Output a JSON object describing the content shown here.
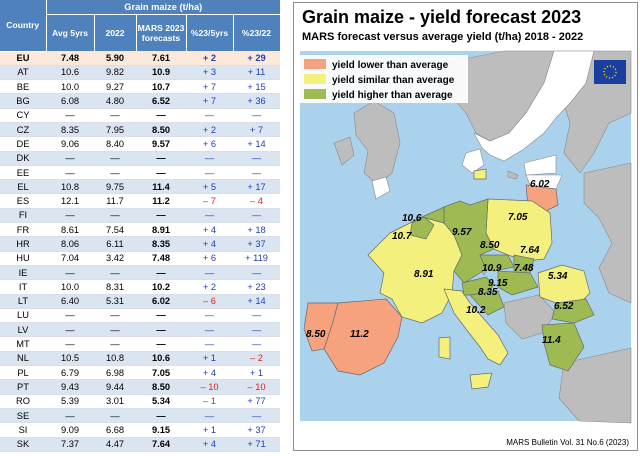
{
  "table": {
    "header_group": "Grain maize (t/ha)",
    "col_country": "Country",
    "columns": [
      "Avg 5yrs",
      "2022",
      "MARS 2023 forecasts",
      "%23/5yrs",
      "%23/22"
    ],
    "rows": [
      {
        "country": "EU",
        "avg": "7.48",
        "y2022": "5.90",
        "mars": "7.61",
        "p5": "+ 2",
        "p22": "+ 29"
      },
      {
        "country": "AT",
        "avg": "10.6",
        "y2022": "9.82",
        "mars": "10.9",
        "p5": "+ 3",
        "p22": "+ 11"
      },
      {
        "country": "BE",
        "avg": "10.0",
        "y2022": "9.27",
        "mars": "10.7",
        "p5": "+ 7",
        "p22": "+ 15"
      },
      {
        "country": "BG",
        "avg": "6.08",
        "y2022": "4.80",
        "mars": "6.52",
        "p5": "+ 7",
        "p22": "+ 36"
      },
      {
        "country": "CY",
        "avg": "—",
        "y2022": "—",
        "mars": "—",
        "p5": "—",
        "p22": "—"
      },
      {
        "country": "CZ",
        "avg": "8.35",
        "y2022": "7.95",
        "mars": "8.50",
        "p5": "+ 2",
        "p22": "+ 7"
      },
      {
        "country": "DE",
        "avg": "9.06",
        "y2022": "8.40",
        "mars": "9.57",
        "p5": "+ 6",
        "p22": "+ 14"
      },
      {
        "country": "DK",
        "avg": "—",
        "y2022": "—",
        "mars": "—",
        "p5": "—",
        "p22": "—"
      },
      {
        "country": "EE",
        "avg": "—",
        "y2022": "—",
        "mars": "—",
        "p5": "—",
        "p22": "—"
      },
      {
        "country": "EL",
        "avg": "10.8",
        "y2022": "9.75",
        "mars": "11.4",
        "p5": "+ 5",
        "p22": "+ 17"
      },
      {
        "country": "ES",
        "avg": "12.1",
        "y2022": "11.7",
        "mars": "11.2",
        "p5": "– 7",
        "p22": "– 4"
      },
      {
        "country": "FI",
        "avg": "—",
        "y2022": "—",
        "mars": "—",
        "p5": "—",
        "p22": "—"
      },
      {
        "country": "FR",
        "avg": "8.61",
        "y2022": "7.54",
        "mars": "8.91",
        "p5": "+ 4",
        "p22": "+ 18"
      },
      {
        "country": "HR",
        "avg": "8.06",
        "y2022": "6.11",
        "mars": "8.35",
        "p5": "+ 4",
        "p22": "+ 37"
      },
      {
        "country": "HU",
        "avg": "7.04",
        "y2022": "3.42",
        "mars": "7.48",
        "p5": "+ 6",
        "p22": "+ 119"
      },
      {
        "country": "IE",
        "avg": "—",
        "y2022": "—",
        "mars": "—",
        "p5": "—",
        "p22": "—"
      },
      {
        "country": "IT",
        "avg": "10.0",
        "y2022": "8.31",
        "mars": "10.2",
        "p5": "+ 2",
        "p22": "+ 23"
      },
      {
        "country": "LT",
        "avg": "6.40",
        "y2022": "5.31",
        "mars": "6.02",
        "p5": "– 6",
        "p22": "+ 14"
      },
      {
        "country": "LU",
        "avg": "—",
        "y2022": "—",
        "mars": "—",
        "p5": "—",
        "p22": "—"
      },
      {
        "country": "LV",
        "avg": "—",
        "y2022": "—",
        "mars": "—",
        "p5": "—",
        "p22": "—"
      },
      {
        "country": "MT",
        "avg": "—",
        "y2022": "—",
        "mars": "—",
        "p5": "—",
        "p22": "—"
      },
      {
        "country": "NL",
        "avg": "10.5",
        "y2022": "10.8",
        "mars": "10.6",
        "p5": "+ 1",
        "p22": "– 2"
      },
      {
        "country": "PL",
        "avg": "6.79",
        "y2022": "6.98",
        "mars": "7.05",
        "p5": "+ 4",
        "p22": "+ 1"
      },
      {
        "country": "PT",
        "avg": "9.43",
        "y2022": "9.44",
        "mars": "8.50",
        "p5": "– 10",
        "p22": "– 10"
      },
      {
        "country": "RO",
        "avg": "5.39",
        "y2022": "3.01",
        "mars": "5.34",
        "p5": "– 1",
        "p22": "+ 77"
      },
      {
        "country": "SE",
        "avg": "—",
        "y2022": "—",
        "mars": "—",
        "p5": "—",
        "p22": "—"
      },
      {
        "country": "SI",
        "avg": "9.09",
        "y2022": "6.68",
        "mars": "9.15",
        "p5": "+ 1",
        "p22": "+ 37"
      },
      {
        "country": "SK",
        "avg": "7.37",
        "y2022": "4.47",
        "mars": "7.64",
        "p5": "+ 4",
        "p22": "+ 71"
      }
    ]
  },
  "map": {
    "title": "Grain maize - yield forecast 2023",
    "subtitle": "MARS forecast versus average yield (t/ha) 2018 - 2022",
    "legend": [
      {
        "label": "yield lower than average",
        "color": "#f6a27f"
      },
      {
        "label": "yield similar than average",
        "color": "#f3f07e"
      },
      {
        "label": "yield higher than average",
        "color": "#9dbb52"
      }
    ],
    "labels": [
      "6.02",
      "10.6",
      "7.05",
      "10.7",
      "9.57",
      "8.50",
      "7.64",
      "10.9",
      "7.48",
      "8.91",
      "9.15",
      "5.34",
      "8.35",
      "10.2",
      "6.52",
      "8.50",
      "11.2",
      "11.4"
    ],
    "footer": "MARS Bulletin Vol. 31 No.6 (2023)",
    "colors": {
      "sea": "#abd2ec",
      "nonEU": "#bdbdbd",
      "border": "#6a6a6a"
    }
  },
  "chart_data": {
    "type": "table",
    "title": "Grain maize - yield forecast 2023",
    "columns": [
      "Country",
      "Avg 5yrs",
      "2022",
      "MARS 2023 forecasts",
      "%23/5yrs",
      "%23/22"
    ],
    "unit": "t/ha"
  }
}
